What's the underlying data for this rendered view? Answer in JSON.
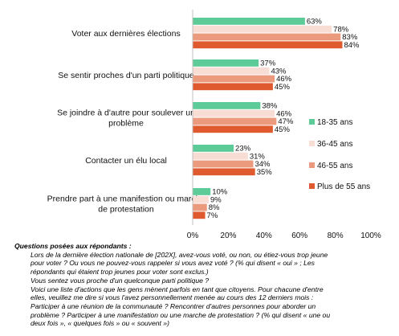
{
  "chart_data": {
    "type": "bar",
    "orientation": "horizontal",
    "categories": [
      "Voter aux dernières élections",
      "Se sentir proches d'un parti politique",
      "Se joindre à d'autre pour soulever un problème",
      "Contacter un élu local",
      "Prendre part à une manifestion ou marche de protestation"
    ],
    "category_lines": [
      [
        "Voter aux dernières élections"
      ],
      [
        "Se sentir proches d'un parti politique"
      ],
      [
        "Se joindre à d'autre pour soulever un",
        "problème"
      ],
      [
        "Contacter un élu local"
      ],
      [
        "Prendre part à une manifestion ou marche",
        "de protestation"
      ]
    ],
    "series": [
      {
        "name": "18-35 ans",
        "color": "#5ccb97",
        "values": [
          63,
          37,
          38,
          23,
          10
        ],
        "labels": [
          "63%",
          "37%",
          "38%",
          "23%",
          "10%"
        ]
      },
      {
        "name": "36-45 ans",
        "color": "#f8ddd5",
        "values": [
          78,
          43,
          46,
          31,
          9
        ],
        "labels": [
          "78%",
          "43%",
          "46%",
          "31%",
          "9%"
        ]
      },
      {
        "name": "46-55 ans",
        "color": "#ec9a7d",
        "values": [
          83,
          46,
          47,
          34,
          8
        ],
        "labels": [
          "83%",
          "46%",
          "47%",
          "34%",
          "8%"
        ]
      },
      {
        "name": "Plus de 55 ans",
        "color": "#e05a30",
        "values": [
          84,
          45,
          45,
          35,
          7
        ],
        "labels": [
          "84%",
          "45%",
          "45%",
          "35%",
          "7%"
        ]
      }
    ],
    "xlim": [
      0,
      100
    ],
    "xticks": [
      "0%",
      "20%",
      "40%",
      "60%",
      "80%",
      "100%"
    ],
    "legend_position": "right",
    "grid": false
  },
  "notes": {
    "title": "Questions posées aux répondants :",
    "lines": [
      "Lors de la dernière élection nationale de [202X], avez-vous voté, ou non, ou étiez-vous trop jeune",
      "pour voter ? Ou vous ne pouvez-vous rappeler si vous avez voté ? (% qui disent « oui » ; Les",
      "répondants qui étaient trop jeunes pour voter sont exclus.)",
      "Vous sentez vous proche d'un quelconque parti politique ?",
      "Voici une liste d'actions que les gens mènent parfois en tant que citoyens. Pour chacune d'entre",
      "elles, veuillez me dire si vous l'avez personnellement menée au cours des 12 derniers mois :",
      "Participer à une réunion de la communauté ? Rencontrer d'autres personnes pour aborder un",
      "problème ? Participer à une manifestation ou une marche de protestation ? (% qui disent « une ou",
      "deux fois », « quelques fois » ou « souvent »)"
    ]
  }
}
